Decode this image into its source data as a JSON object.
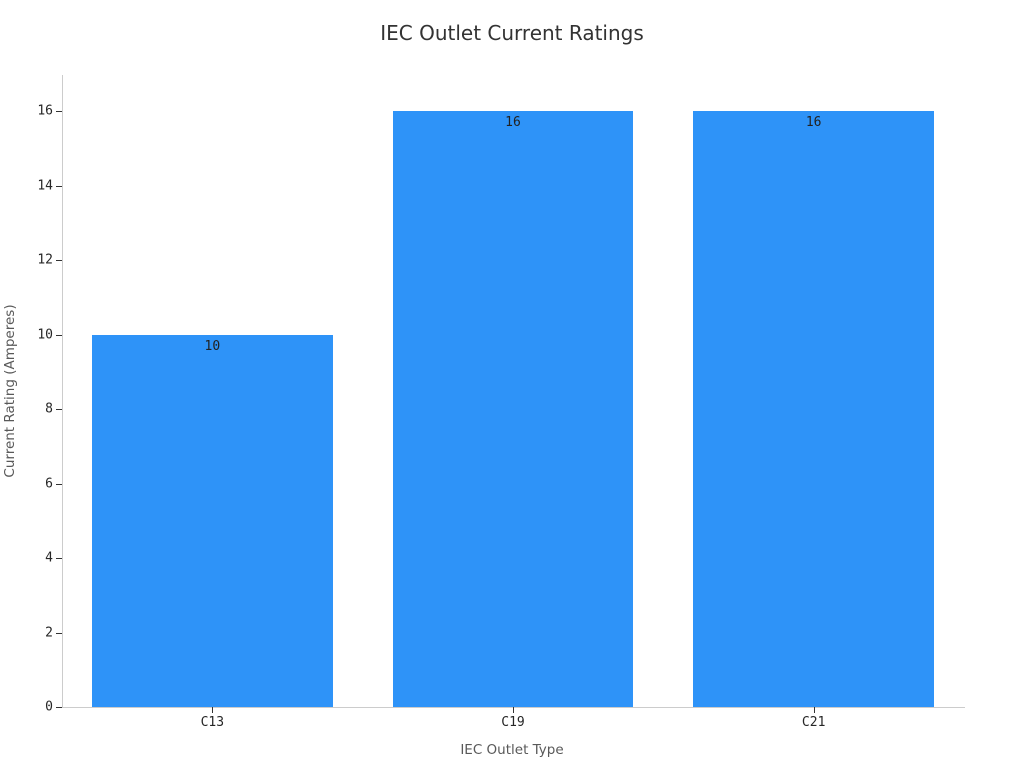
{
  "chart_data": {
    "type": "bar",
    "title": "IEC Outlet Current Ratings",
    "xlabel": "IEC Outlet Type",
    "ylabel": "Current Rating (Amperes)",
    "categories": [
      "C13",
      "C19",
      "C21"
    ],
    "values": [
      10,
      16,
      16
    ],
    "bar_labels": [
      "10",
      "16",
      "16"
    ],
    "ylim": [
      0,
      16
    ],
    "yticks": [
      0,
      2,
      4,
      6,
      8,
      10,
      12,
      14,
      16
    ],
    "grid": false,
    "legend": "none",
    "colors": {
      "bar": "#2E93F8",
      "title_text": "#333333",
      "axis_title_text": "#595959",
      "tick_text": "#262626",
      "tick_mark": "#333333",
      "axis_line": "#cccccc",
      "bar_label_text": "#222222"
    }
  }
}
